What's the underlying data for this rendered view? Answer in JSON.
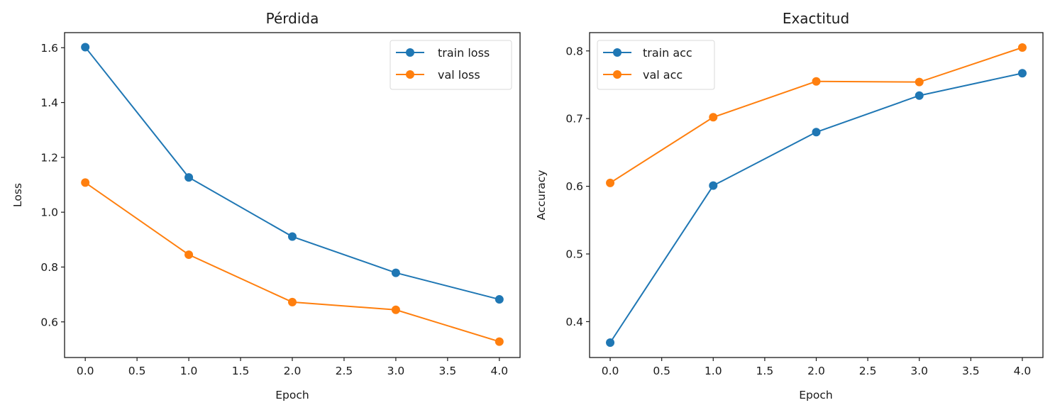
{
  "chart_data": [
    {
      "type": "line",
      "title": "Pérdida",
      "xlabel": "Epoch",
      "ylabel": "Loss",
      "x": [
        0,
        1,
        2,
        3,
        4
      ],
      "xlim": [
        -0.2,
        4.2
      ],
      "ylim": [
        0.47,
        1.655
      ],
      "xticks": [
        0.0,
        0.5,
        1.0,
        1.5,
        2.0,
        2.5,
        3.0,
        3.5,
        4.0
      ],
      "xtick_labels": [
        "0.0",
        "0.5",
        "1.0",
        "1.5",
        "2.0",
        "2.5",
        "3.0",
        "3.5",
        "4.0"
      ],
      "yticks": [
        0.6,
        0.8,
        1.0,
        1.2,
        1.4,
        1.6
      ],
      "ytick_labels": [
        "0.6",
        "0.8",
        "1.0",
        "1.2",
        "1.4",
        "1.6"
      ],
      "grid": false,
      "legend_position": "top-right",
      "series": [
        {
          "name": "train loss",
          "color": "#1f77b4",
          "values": [
            1.602,
            1.127,
            0.911,
            0.779,
            0.682
          ]
        },
        {
          "name": "val loss",
          "color": "#ff7f0e",
          "values": [
            1.108,
            0.845,
            0.672,
            0.644,
            0.528
          ]
        }
      ]
    },
    {
      "type": "line",
      "title": "Exactitud",
      "xlabel": "Epoch",
      "ylabel": "Accuracy",
      "x": [
        0,
        1,
        2,
        3,
        4
      ],
      "xlim": [
        -0.2,
        4.2
      ],
      "ylim": [
        0.347,
        0.827
      ],
      "xticks": [
        0.0,
        0.5,
        1.0,
        1.5,
        2.0,
        2.5,
        3.0,
        3.5,
        4.0
      ],
      "xtick_labels": [
        "0.0",
        "0.5",
        "1.0",
        "1.5",
        "2.0",
        "2.5",
        "3.0",
        "3.5",
        "4.0"
      ],
      "yticks": [
        0.4,
        0.5,
        0.6,
        0.7,
        0.8
      ],
      "ytick_labels": [
        "0.4",
        "0.5",
        "0.6",
        "0.7",
        "0.8"
      ],
      "grid": false,
      "legend_position": "top-left",
      "series": [
        {
          "name": "train acc",
          "color": "#1f77b4",
          "values": [
            0.369,
            0.601,
            0.68,
            0.734,
            0.767
          ]
        },
        {
          "name": "val acc",
          "color": "#ff7f0e",
          "values": [
            0.605,
            0.702,
            0.755,
            0.754,
            0.805
          ]
        }
      ]
    }
  ]
}
